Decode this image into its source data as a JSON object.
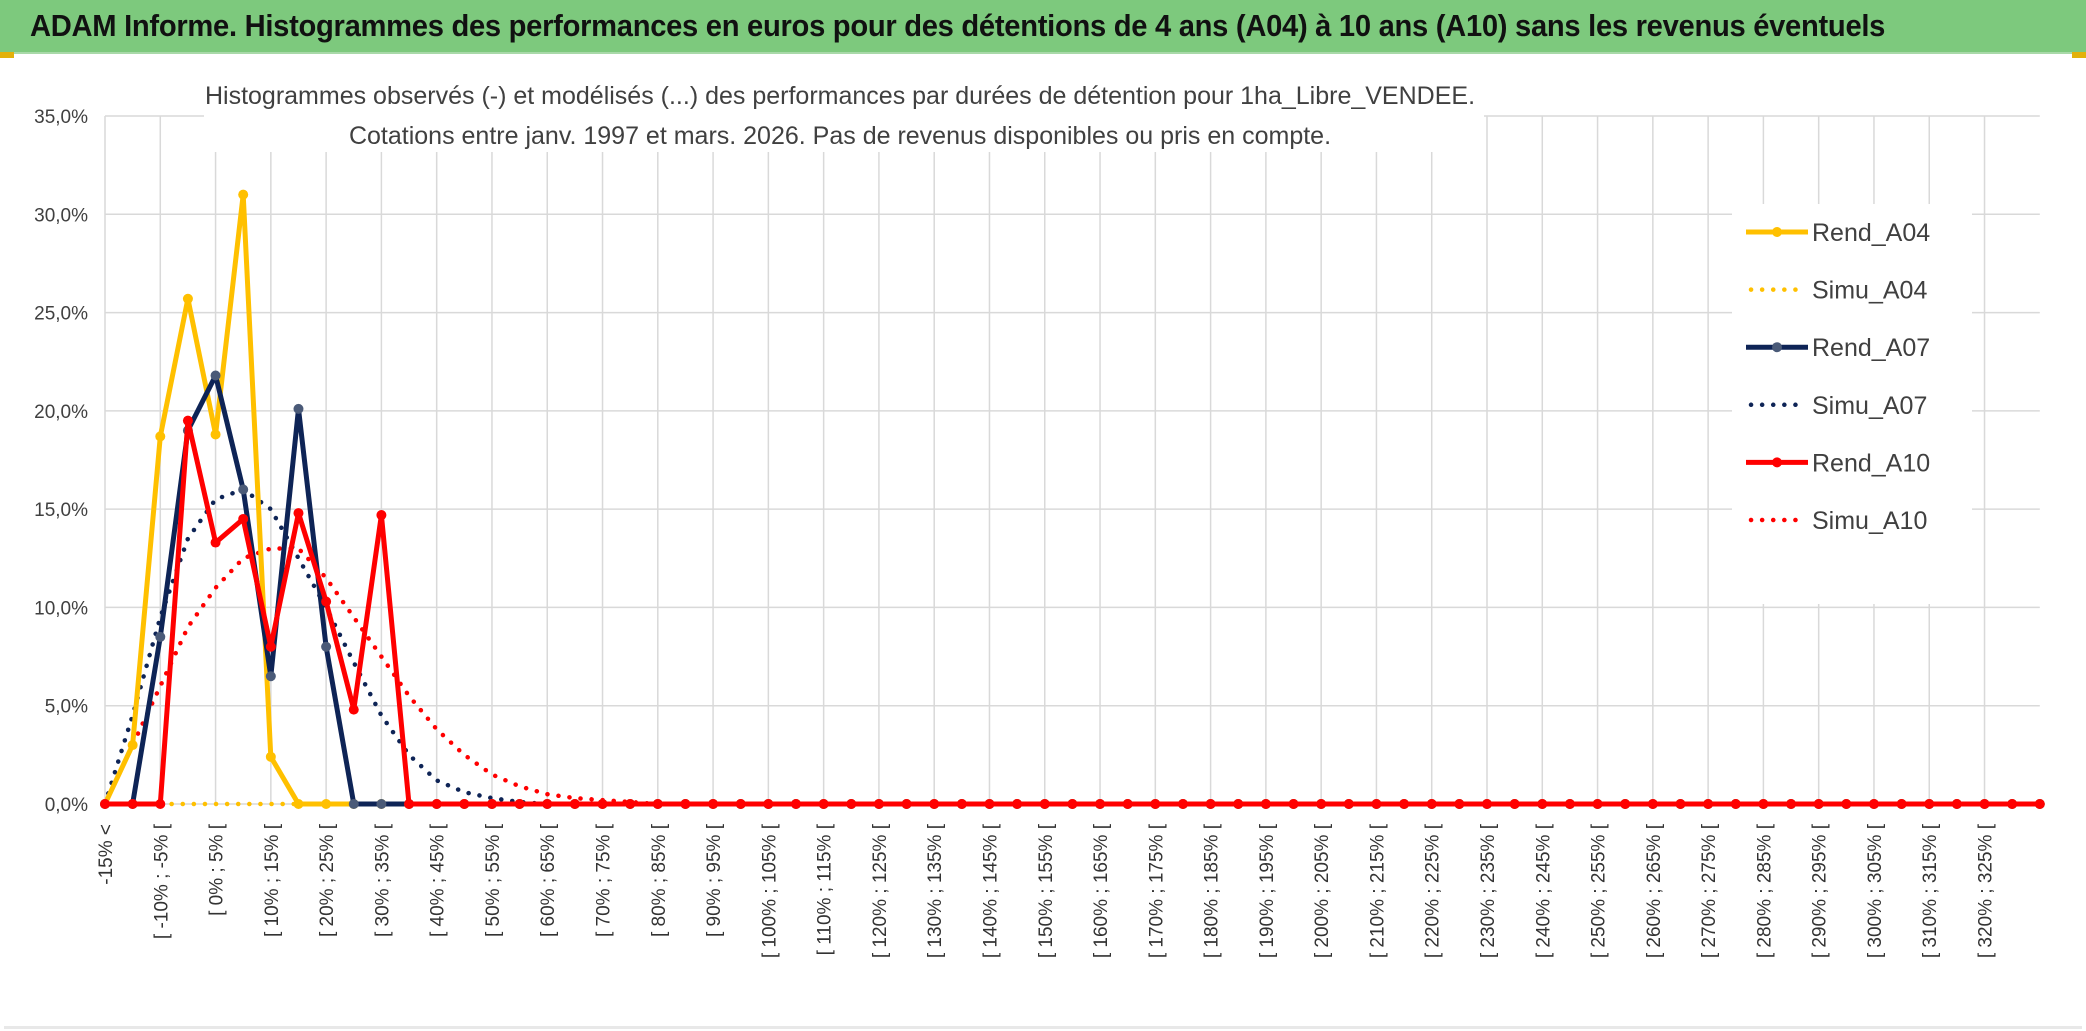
{
  "header": {
    "title": "ADAM Informe. Histogrammes des performances en euros pour des détentions de 4 ans (A04) à 10 ans (A10) sans les revenus éventuels",
    "background": "#7dc97d"
  },
  "chart_data": {
    "type": "line",
    "title": "Histogrammes observés (-) et modélisés (...) des performances par durées de détention pour 1ha_Libre_VENDEE.",
    "subtitle": "Cotations entre janv. 1997 et mars. 2026. Pas de revenus disponibles ou pris en compte.",
    "xlabel": "",
    "ylabel": "",
    "ylim": [
      0,
      0.35
    ],
    "y_ticks": [
      "0,0%",
      "5,0%",
      "10,0%",
      "15,0%",
      "20,0%",
      "25,0%",
      "30,0%",
      "35,0%"
    ],
    "grid": true,
    "legend_position": "right",
    "x_labels": [
      "-15% <",
      "[ -10% ; -5% [",
      "[ 0% ; 5% [",
      "[ 10% ; 15% [",
      "[ 20% ; 25% [",
      "[ 30% ; 35% [",
      "[ 40% ; 45% [",
      "[ 50% ; 55% [",
      "[ 60% ; 65% [",
      "[ 70% ; 75% [",
      "[ 80% ; 85% [",
      "[ 90% ; 95% [",
      "[ 100% ; 105% [",
      "[ 110% ; 115% [",
      "[ 120% ; 125% [",
      "[ 130% ; 135% [",
      "[ 140% ; 145% [",
      "[ 150% ; 155% [",
      "[ 160% ; 165% [",
      "[ 170% ; 175% [",
      "[ 180% ; 185% [",
      "[ 190% ; 195% [",
      "[ 200% ; 205% [",
      "[ 210% ; 215% [",
      "[ 220% ; 225% [",
      "[ 230% ; 235% [",
      "[ 240% ; 245% [",
      "[ 250% ; 255% [",
      "[ 260% ; 265% [",
      "[ 270% ; 275% [",
      "[ 280% ; 285% [",
      "[ 290% ; 295% [",
      "[ 300% ; 305% [",
      "[ 310% ; 315% [",
      "[ 320% ; 325% ["
    ],
    "n_points": 71,
    "series": [
      {
        "name": "Rend_A04",
        "style": "solid",
        "color": "#ffc000",
        "values": [
          0,
          0.03,
          0.187,
          0.257,
          0.188,
          0.31,
          0.024,
          0,
          0,
          0
        ]
      },
      {
        "name": "Simu_A04",
        "style": "dotted",
        "color": "#ffc000",
        "values": [
          0,
          0,
          0,
          0,
          0,
          0,
          0,
          0,
          0,
          0
        ]
      },
      {
        "name": "Rend_A07",
        "style": "solid",
        "color": "#0e2456",
        "values": [
          0,
          0,
          0.085,
          0.19,
          0.218,
          0.16,
          0.065,
          0.201,
          0.08,
          0,
          0,
          0
        ]
      },
      {
        "name": "Simu_A07",
        "style": "dotted",
        "color": "#0e2456",
        "values": [
          0,
          0.045,
          0.095,
          0.135,
          0.155,
          0.16,
          0.15,
          0.125,
          0.1,
          0.072,
          0.045,
          0.025,
          0.012,
          0.006,
          0.003,
          0.001,
          0,
          0
        ]
      },
      {
        "name": "Rend_A10",
        "style": "solid",
        "color": "#ff0000",
        "values": [
          0,
          0,
          0,
          0.195,
          0.133,
          0.145,
          0.08,
          0.148,
          0.103,
          0.048,
          0.147,
          0,
          0,
          0
        ]
      },
      {
        "name": "Simu_A10",
        "style": "dotted",
        "color": "#ff0000",
        "values": [
          0,
          0.03,
          0.06,
          0.09,
          0.11,
          0.125,
          0.13,
          0.13,
          0.115,
          0.095,
          0.075,
          0.055,
          0.038,
          0.025,
          0.015,
          0.009,
          0.005,
          0.003,
          0.002,
          0.001,
          0,
          0
        ]
      }
    ]
  }
}
